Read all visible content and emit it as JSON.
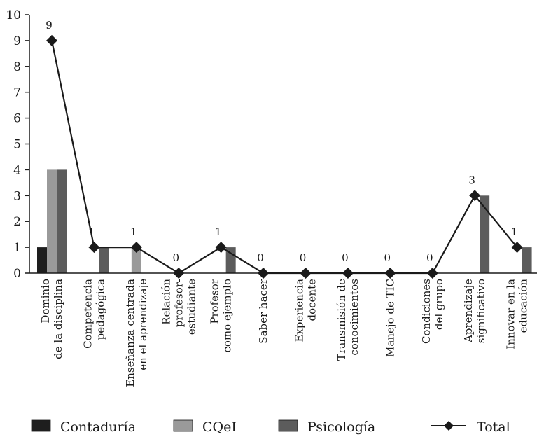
{
  "chart_data": {
    "type": "bar",
    "ylim": [
      0,
      10
    ],
    "yticks": [
      0,
      1,
      2,
      3,
      4,
      5,
      6,
      7,
      8,
      9,
      10
    ],
    "grid": false,
    "legend_position": "bottom",
    "categories": [
      [
        "Dominio",
        "de la disciplina"
      ],
      [
        "Competencia",
        "pedagógica"
      ],
      [
        "Enseñanza centrada",
        "en el aprendizaje"
      ],
      [
        "Relación",
        "profesor-",
        "estudiante"
      ],
      [
        "Profesor",
        "como ejemplo"
      ],
      [
        "Saber hacer"
      ],
      [
        "Experiencia",
        "docente"
      ],
      [
        "Transmisión de",
        "conocimientos"
      ],
      [
        "Manejo de TIC"
      ],
      [
        "Condiciones",
        "del grupo"
      ],
      [
        "Aprendizaje",
        "significativo"
      ],
      [
        "Innovar en la",
        "educación"
      ]
    ],
    "series": [
      {
        "name": "Contaduría",
        "kind": "bar",
        "color": "#1e1e1e",
        "values": [
          1,
          0,
          0,
          0,
          0,
          0,
          0,
          0,
          0,
          0,
          0,
          0
        ]
      },
      {
        "name": "CQeI",
        "kind": "bar",
        "color": "#9a9a9a",
        "values": [
          4,
          0,
          1,
          0,
          0,
          0,
          0,
          0,
          0,
          0,
          0,
          0
        ]
      },
      {
        "name": "Psicología",
        "kind": "bar",
        "color": "#5c5c5c",
        "values": [
          4,
          1,
          0,
          0,
          1,
          0,
          0,
          0,
          0,
          0,
          3,
          1
        ]
      },
      {
        "name": "Total",
        "kind": "line",
        "color": "#1a1a1a",
        "values": [
          9,
          1,
          1,
          0,
          1,
          0,
          0,
          0,
          0,
          0,
          3,
          1
        ]
      }
    ]
  }
}
